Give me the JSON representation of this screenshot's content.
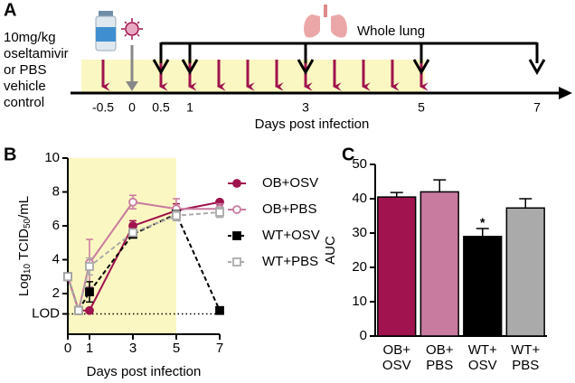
{
  "panel_labels": [
    "A",
    "B",
    "C"
  ],
  "timeline": {
    "treatment_label": [
      "10mg/kg",
      "oseltamivir",
      "or PBS",
      "vehicle",
      "control"
    ],
    "harvest_label": "Whole lung",
    "xlabel": "Days post infection",
    "ticks": [
      -0.5,
      0,
      0.5,
      1,
      3,
      5,
      7
    ],
    "dose_days": [
      -0.5,
      0.5,
      1,
      1.5,
      2,
      2.5,
      3,
      3.5,
      4,
      4.5,
      5
    ],
    "infection_day": 0,
    "harvest_days": [
      0.5,
      1,
      3,
      5,
      7
    ]
  },
  "chart_data": [
    {
      "type": "line",
      "ylabel": [
        "Log",
        "10",
        " TCID",
        "50",
        "/mL"
      ],
      "xlabel": "Days post infection",
      "x": [
        0,
        0.5,
        1,
        3,
        5,
        7
      ],
      "xlim": [
        0,
        7
      ],
      "xticks": [
        0,
        1,
        3,
        5,
        7
      ],
      "ylim": [
        -0.4,
        10
      ],
      "yticks": [
        {
          "value": 0.8,
          "label": "LOD"
        },
        2,
        4,
        6,
        8,
        10
      ],
      "shade_x": [
        0,
        5
      ],
      "legend": "right",
      "series": [
        {
          "name": "OB+OSV",
          "color": "#a0134e",
          "marker": "circle",
          "filled": true,
          "dashed": false,
          "values": [
            3.0,
            1.0,
            1.0,
            6.0,
            6.9,
            7.4
          ],
          "errors": [
            0,
            0,
            0,
            0.3,
            0.4,
            0.1
          ]
        },
        {
          "name": "OB+PBS",
          "color": "#c97a9f",
          "marker": "circle",
          "filled": false,
          "dashed": false,
          "values": [
            3.0,
            1.0,
            3.8,
            7.4,
            7.0,
            7.0
          ],
          "errors": [
            0,
            0,
            1.4,
            0.4,
            0.6,
            0.3
          ]
        },
        {
          "name": "WT+OSV",
          "color": "#000000",
          "marker": "square",
          "filled": true,
          "dashed": true,
          "values": [
            3.0,
            1.0,
            2.1,
            5.5,
            6.7,
            1.0
          ],
          "errors": [
            0,
            0,
            0.6,
            0.1,
            0.2,
            0
          ]
        },
        {
          "name": "WT+PBS",
          "color": "#aaaaaa",
          "marker": "square",
          "filled": false,
          "dashed": true,
          "values": [
            3.0,
            1.0,
            3.6,
            5.6,
            6.6,
            6.8
          ],
          "errors": [
            0,
            0,
            0.5,
            0.2,
            0.3,
            0.3
          ]
        }
      ]
    },
    {
      "type": "bar",
      "ylabel": "AUC",
      "categories": [
        [
          "OB+",
          "OSV"
        ],
        [
          "OB+",
          "PBS"
        ],
        [
          "WT+",
          "OSV"
        ],
        [
          "WT+",
          "PBS"
        ]
      ],
      "values": [
        40.5,
        42.0,
        29.0,
        37.3
      ],
      "errors": [
        1.3,
        3.5,
        2.3,
        2.7
      ],
      "colors": [
        "#a0134e",
        "#c97a9f",
        "#000000",
        "#aaaaaa"
      ],
      "ylim": [
        0,
        50
      ],
      "yticks": [
        0,
        10,
        20,
        30,
        40,
        50
      ],
      "annotations": [
        {
          "text": "*",
          "index": 2
        }
      ]
    }
  ]
}
